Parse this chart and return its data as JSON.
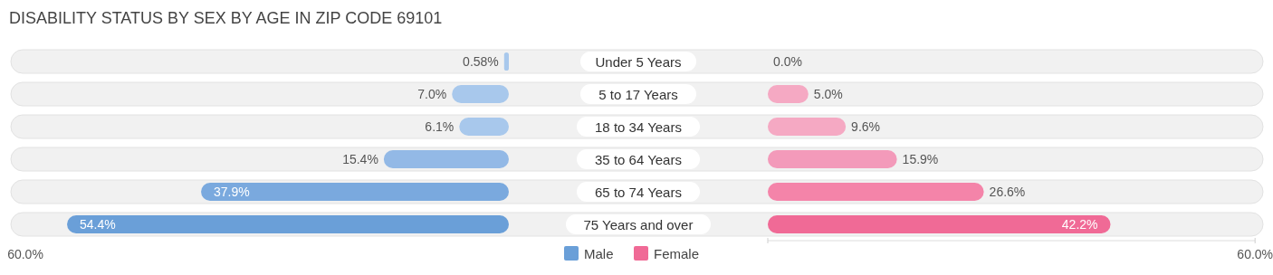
{
  "chart_data": [
    {
      "type": "bar",
      "orientation": "horizontal",
      "title": "DISABILITY STATUS BY SEX BY AGE IN ZIP CODE 69101",
      "categories": [
        "Under 5 Years",
        "5 to 17 Years",
        "18 to 34 Years",
        "35 to 64 Years",
        "65 to 74 Years",
        "75 Years and over"
      ],
      "tick_labels": "y",
      "series": [
        {
          "name": "Male",
          "color": "#6a9fd8",
          "values": [
            0.58,
            7.0,
            6.1,
            15.4,
            37.9,
            54.4
          ],
          "colors": [
            "#a8c8ec",
            "#a8c8ec",
            "#a8c8ec",
            "#93b9e6",
            "#7aa9de",
            "#6a9fd8"
          ],
          "value_labels": [
            "0.58%",
            "7.0%",
            "6.1%",
            "15.4%",
            "37.9%",
            "54.4%"
          ]
        }
      ],
      "annotations": [
        "60.0%"
      ],
      "legend": "bottom"
    },
    {
      "type": "bar",
      "orientation": "horizontal",
      "tick_labels": "x",
      "categories": [
        null,
        null,
        null,
        null,
        null,
        null
      ],
      "series": [
        {
          "name": "Female",
          "color": "#f06a96",
          "values": [
            0.0,
            5.0,
            9.6,
            15.9,
            26.6,
            42.2
          ],
          "colors": [
            "#f5a9c3",
            "#f5a9c3",
            "#f5a9c3",
            "#f39aba",
            "#f484a9",
            "#f06a96"
          ],
          "value_labels": [
            "0.0%",
            "5.0%",
            "9.6%",
            "15.9%",
            "26.6%",
            "42.2%"
          ]
        }
      ],
      "xlim": [
        0,
        60
      ],
      "xticks": [
        {
          "value": 0,
          "label": null
        },
        {
          "value": 60,
          "label": "60.0%"
        }
      ],
      "legend": "bottom"
    }
  ]
}
